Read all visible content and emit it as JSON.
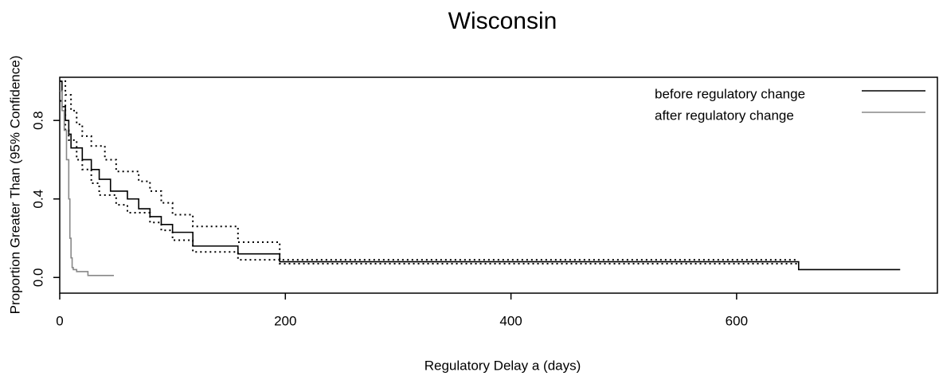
{
  "chart_data": {
    "type": "line",
    "step": "post",
    "title": "Wisconsin",
    "x_label": "Regulatory Delay a (days)",
    "y_label": "Proportion Greater Than (95% Confidence)",
    "xlim": [
      0,
      778
    ],
    "ylim": [
      -0.08,
      1.02
    ],
    "xticks": [
      0,
      200,
      400,
      600
    ],
    "yticks": [
      {
        "value": 0,
        "label": "0.0"
      },
      {
        "value": 0.4,
        "label": "0.4"
      },
      {
        "value": 0.8,
        "label": "0.8"
      }
    ],
    "legend": "top-right",
    "series": [
      {
        "name": "before regulatory change",
        "color": "#000000",
        "dash": "solid",
        "x": [
          0,
          2,
          5,
          8,
          10,
          20,
          28,
          35,
          45,
          60,
          70,
          80,
          90,
          100,
          118,
          158,
          195,
          655,
          745
        ],
        "values": [
          1.0,
          0.87,
          0.8,
          0.73,
          0.66,
          0.6,
          0.55,
          0.5,
          0.44,
          0.4,
          0.35,
          0.31,
          0.27,
          0.23,
          0.16,
          0.12,
          0.08,
          0.04,
          0.04
        ]
      },
      {
        "color": "#000000",
        "dash": "dotted",
        "x": [
          0,
          5,
          10,
          15,
          20,
          28,
          40,
          50,
          70,
          80,
          90,
          100,
          118,
          158,
          195,
          655
        ],
        "values": [
          1.0,
          0.93,
          0.85,
          0.78,
          0.72,
          0.67,
          0.6,
          0.54,
          0.49,
          0.44,
          0.38,
          0.32,
          0.26,
          0.18,
          0.09,
          0.09
        ]
      },
      {
        "color": "#000000",
        "dash": "dotted",
        "x": [
          0,
          5,
          8,
          15,
          20,
          28,
          35,
          50,
          60,
          80,
          90,
          100,
          118,
          158,
          195,
          655
        ],
        "values": [
          0.9,
          0.75,
          0.7,
          0.6,
          0.55,
          0.48,
          0.42,
          0.37,
          0.33,
          0.28,
          0.24,
          0.19,
          0.13,
          0.09,
          0.07,
          0.07
        ]
      },
      {
        "name": "after regulatory change",
        "color": "#888888",
        "dash": "solid",
        "x": [
          0,
          2,
          4,
          6,
          8,
          9,
          10,
          11,
          12,
          15,
          25,
          48
        ],
        "values": [
          0.95,
          0.85,
          0.75,
          0.6,
          0.4,
          0.2,
          0.1,
          0.05,
          0.04,
          0.03,
          0.01,
          0.01
        ]
      }
    ]
  }
}
